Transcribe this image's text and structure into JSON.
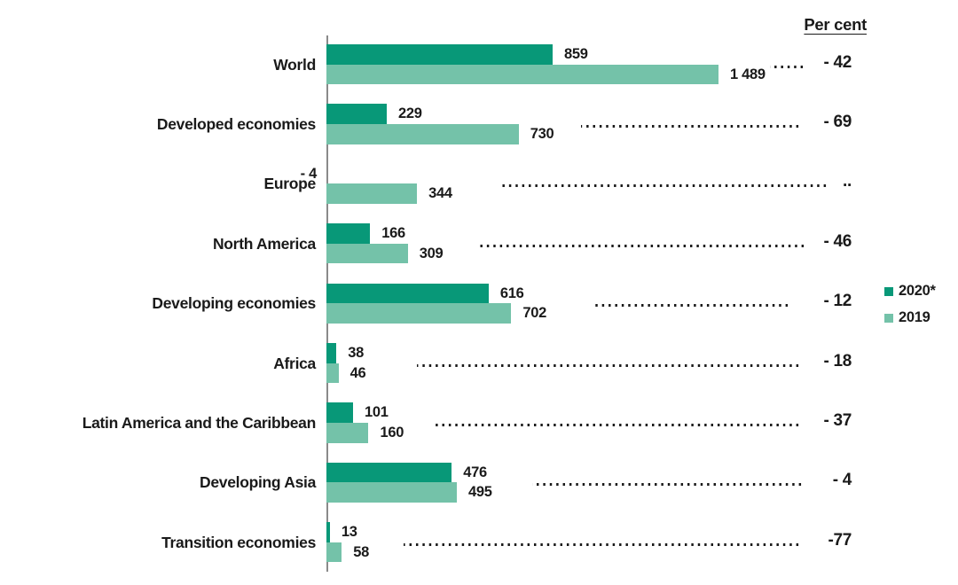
{
  "chart_data": {
    "type": "bar",
    "orientation": "horizontal",
    "unit_header": "Per cent",
    "categories": [
      "World",
      "Developed economies",
      "Europe",
      "North America",
      "Developing economies",
      "Africa",
      "Latin America and the Caribbean",
      "Developing Asia",
      "Transition economies"
    ],
    "series": [
      {
        "name": "2020*",
        "color": "#089878",
        "values": [
          859,
          229,
          -4,
          166,
          616,
          38,
          101,
          476,
          13
        ],
        "labels": [
          "859",
          "229",
          "- 4",
          "166",
          "616",
          "38",
          "101",
          "476",
          "13"
        ]
      },
      {
        "name": "2019",
        "color": "#74c2a9",
        "values": [
          1489,
          730,
          344,
          309,
          702,
          46,
          160,
          495,
          58
        ],
        "labels": [
          "1 489",
          "730",
          "344",
          "309",
          "702",
          "46",
          "160",
          "495",
          "58"
        ]
      }
    ],
    "pct_change": [
      "- 42",
      "- 69",
      "..",
      "- 46",
      "- 12",
      "- 18",
      "- 37",
      "- 4",
      "-77"
    ],
    "axis_range": [
      0,
      1489
    ],
    "grid": false,
    "legend_position": "right",
    "legend": [
      {
        "label": "2020*",
        "color": "#089878"
      },
      {
        "label": "2019",
        "color": "#74c2a9"
      }
    ]
  }
}
